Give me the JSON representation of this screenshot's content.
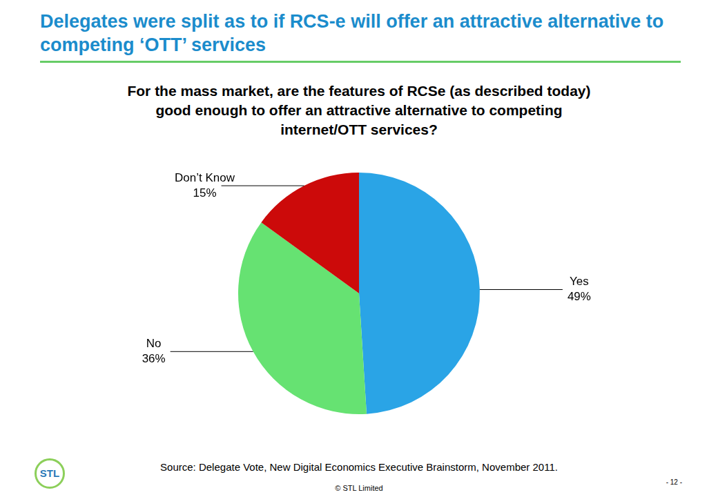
{
  "header": {
    "title": "Delegates were split as to if RCS-e will offer an attractive alternative to competing ‘OTT’ services"
  },
  "chart_data": {
    "type": "pie",
    "title": "For the mass market, are the features of RCSe (as described today) good enough to offer an attractive alternative to competing internet/OTT services?",
    "categories": [
      "Yes",
      "No",
      "Don’t Know"
    ],
    "values": [
      49,
      36,
      15
    ],
    "value_labels": [
      "49%",
      "36%",
      "15%"
    ],
    "colors": [
      "#2aa4e6",
      "#66e272",
      "#cc0a0a"
    ],
    "data_labels": true,
    "legend": false
  },
  "footer": {
    "logo": "STL",
    "source": "Source: Delegate Vote, New Digital Economics Executive Brainstorm, November 2011.",
    "copyright": "© STL Limited",
    "page": "- 12 -"
  }
}
